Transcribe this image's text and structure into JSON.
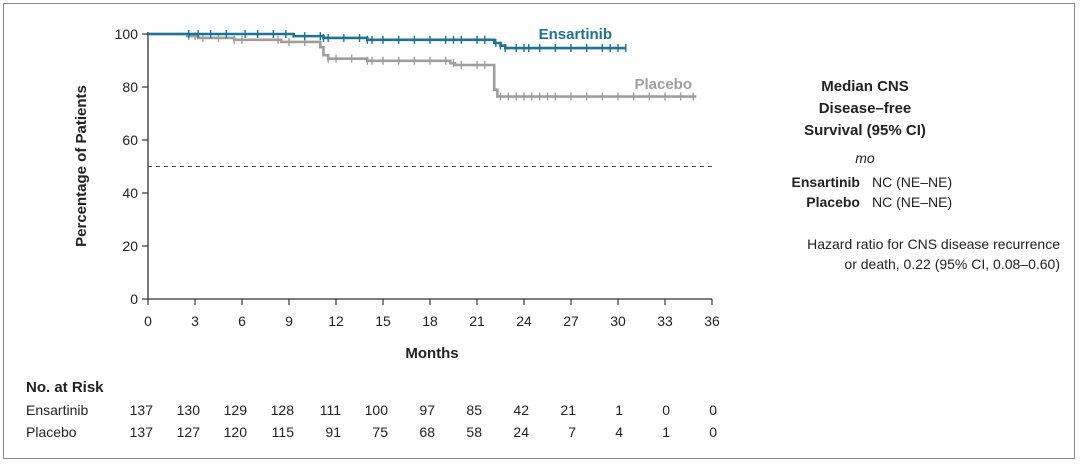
{
  "chart_data": {
    "type": "line",
    "title": "",
    "xlabel": "Months",
    "ylabel": "Percentage of Patients",
    "xlim": [
      0,
      36
    ],
    "ylim": [
      0,
      100
    ],
    "x_ticks": [
      0,
      3,
      6,
      9,
      12,
      15,
      18,
      21,
      24,
      27,
      30,
      33,
      36
    ],
    "y_ticks": [
      0,
      20,
      40,
      60,
      80,
      100
    ],
    "reference_line": {
      "y": 50,
      "style": "dashed"
    },
    "grid": false,
    "series": [
      {
        "name": "Ensartinib",
        "color": "#1f7291",
        "steps": [
          [
            0,
            100
          ],
          [
            9.3,
            99.2
          ],
          [
            11.2,
            98.5
          ],
          [
            14,
            97.8
          ],
          [
            22.1,
            96.6
          ],
          [
            22.5,
            95.6
          ],
          [
            22.8,
            94.7
          ],
          [
            30.5,
            94.7
          ]
        ],
        "censor_times": [
          2.6,
          3.2,
          4,
          5,
          6.2,
          7,
          8,
          8.8,
          10,
          11,
          11.2,
          11.5,
          12.5,
          13.5,
          14,
          14.3,
          15,
          16,
          17,
          18,
          19,
          19.5,
          20,
          21,
          21.5,
          22.2,
          22.5,
          22.8,
          23.5,
          24,
          24.3,
          25,
          26,
          27,
          28,
          29,
          29.5,
          30,
          30.5
        ]
      },
      {
        "name": "Placebo",
        "color": "#9e9e9e",
        "steps": [
          [
            0,
            100
          ],
          [
            2.5,
            99.2
          ],
          [
            3.2,
            98.5
          ],
          [
            5.5,
            97.8
          ],
          [
            8.5,
            97
          ],
          [
            11,
            95
          ],
          [
            11.2,
            92
          ],
          [
            11.5,
            90.7
          ],
          [
            14,
            89.9
          ],
          [
            19.3,
            89
          ],
          [
            19.6,
            88.3
          ],
          [
            22.1,
            79
          ],
          [
            22.3,
            76.4
          ],
          [
            35,
            76.4
          ]
        ],
        "censor_times": [
          2.6,
          3,
          3.5,
          4.5,
          5.5,
          6,
          8.3,
          9,
          10,
          11.5,
          12,
          13,
          14,
          14.3,
          15,
          16,
          17,
          18,
          19,
          19.5,
          20,
          21,
          21.5,
          22.5,
          23,
          23.5,
          24,
          24.5,
          25,
          25.5,
          26,
          27,
          28,
          29,
          30,
          31,
          32,
          33,
          34,
          34.8
        ]
      }
    ],
    "series_labels": [
      {
        "name": "Ensartinib",
        "color": "#1f7291"
      },
      {
        "name": "Placebo",
        "color": "#9e9e9e"
      }
    ],
    "risk_table": {
      "title": "No. at Risk",
      "times": [
        0,
        3,
        6,
        9,
        12,
        15,
        18,
        21,
        24,
        27,
        30,
        33,
        36
      ],
      "rows": [
        {
          "name": "Ensartinib",
          "values": [
            137,
            130,
            129,
            128,
            111,
            100,
            97,
            85,
            42,
            21,
            1,
            0,
            0
          ]
        },
        {
          "name": "Placebo",
          "values": [
            137,
            127,
            120,
            115,
            91,
            75,
            68,
            58,
            24,
            7,
            4,
            1,
            0
          ]
        }
      ]
    }
  },
  "summary_panel": {
    "heading_lines": [
      "Median CNS",
      "Disease–free",
      "Survival (95% CI)"
    ],
    "unit": "mo",
    "rows": [
      {
        "label": "Ensartinib",
        "value": "NC (NE–NE)"
      },
      {
        "label": "Placebo",
        "value": "NC (NE–NE)"
      }
    ],
    "hazard_lines": [
      "Hazard ratio for CNS disease recurrence",
      "or death, 0.22 (95% CI, 0.08–0.60)"
    ]
  }
}
